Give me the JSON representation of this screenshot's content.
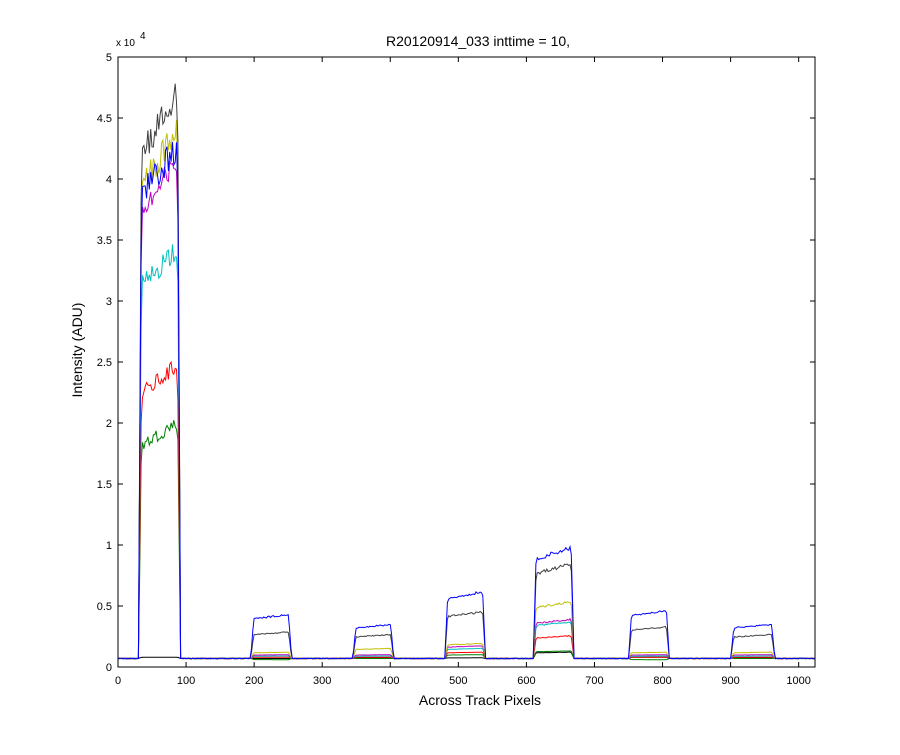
{
  "chart_data": {
    "type": "line",
    "title": "R20120914_033 inttime = 10,",
    "xlabel": "Across Track Pixels",
    "ylabel": "Intensity (ADU)",
    "xlim": [
      0,
      1024
    ],
    "ylim": [
      0,
      50000
    ],
    "xticks": [
      0,
      100,
      200,
      300,
      400,
      500,
      600,
      700,
      800,
      900,
      1000
    ],
    "xtick_labels": [
      "0",
      "100",
      "200",
      "300",
      "400",
      "500",
      "600",
      "700",
      "800",
      "900",
      "1000"
    ],
    "yticks": [
      0,
      5000,
      10000,
      15000,
      20000,
      25000,
      30000,
      35000,
      40000,
      45000,
      50000
    ],
    "ytick_labels": [
      "0",
      "0.5",
      "1",
      "1.5",
      "2",
      "2.5",
      "3",
      "3.5",
      "4",
      "4.5",
      "5"
    ],
    "y_multiplier": {
      "base": "x 10",
      "exponent": "4"
    },
    "grid": false,
    "baseline": 700,
    "bands": [
      {
        "x_start": 30,
        "x_end": 92
      },
      {
        "x_start": 195,
        "x_end": 255
      },
      {
        "x_start": 345,
        "x_end": 405
      },
      {
        "x_start": 480,
        "x_end": 540
      },
      {
        "x_start": 610,
        "x_end": 670
      },
      {
        "x_start": 750,
        "x_end": 810
      },
      {
        "x_start": 900,
        "x_end": 965
      }
    ],
    "series": [
      {
        "color": "#000000",
        "plateaus": [
          800,
          700,
          750,
          750,
          1200,
          800,
          750
        ]
      },
      {
        "color": "#008000",
        "plateaus": [
          19500,
          600,
          700,
          1000,
          1300,
          600,
          700
        ]
      },
      {
        "color": "#ff0000",
        "plateaus": [
          24000,
          800,
          800,
          1200,
          2500,
          800,
          800
        ]
      },
      {
        "color": "#00bfbf",
        "plateaus": [
          33500,
          900,
          900,
          1500,
          3600,
          900,
          900
        ]
      },
      {
        "color": "#bf00bf",
        "plateaus": [
          40000,
          1000,
          1000,
          1700,
          3800,
          1000,
          1000
        ]
      },
      {
        "color": "#bfbf00",
        "plateaus": [
          42500,
          1200,
          1500,
          1900,
          5200,
          1200,
          1200
        ]
      },
      {
        "color": "#404040",
        "plateaus": [
          45500,
          2800,
          2600,
          4400,
          8200,
          3200,
          2600
        ]
      },
      {
        "color": "#0000ff",
        "plateaus": [
          41500,
          4200,
          3400,
          6000,
          9500,
          4500,
          3400
        ]
      }
    ]
  }
}
